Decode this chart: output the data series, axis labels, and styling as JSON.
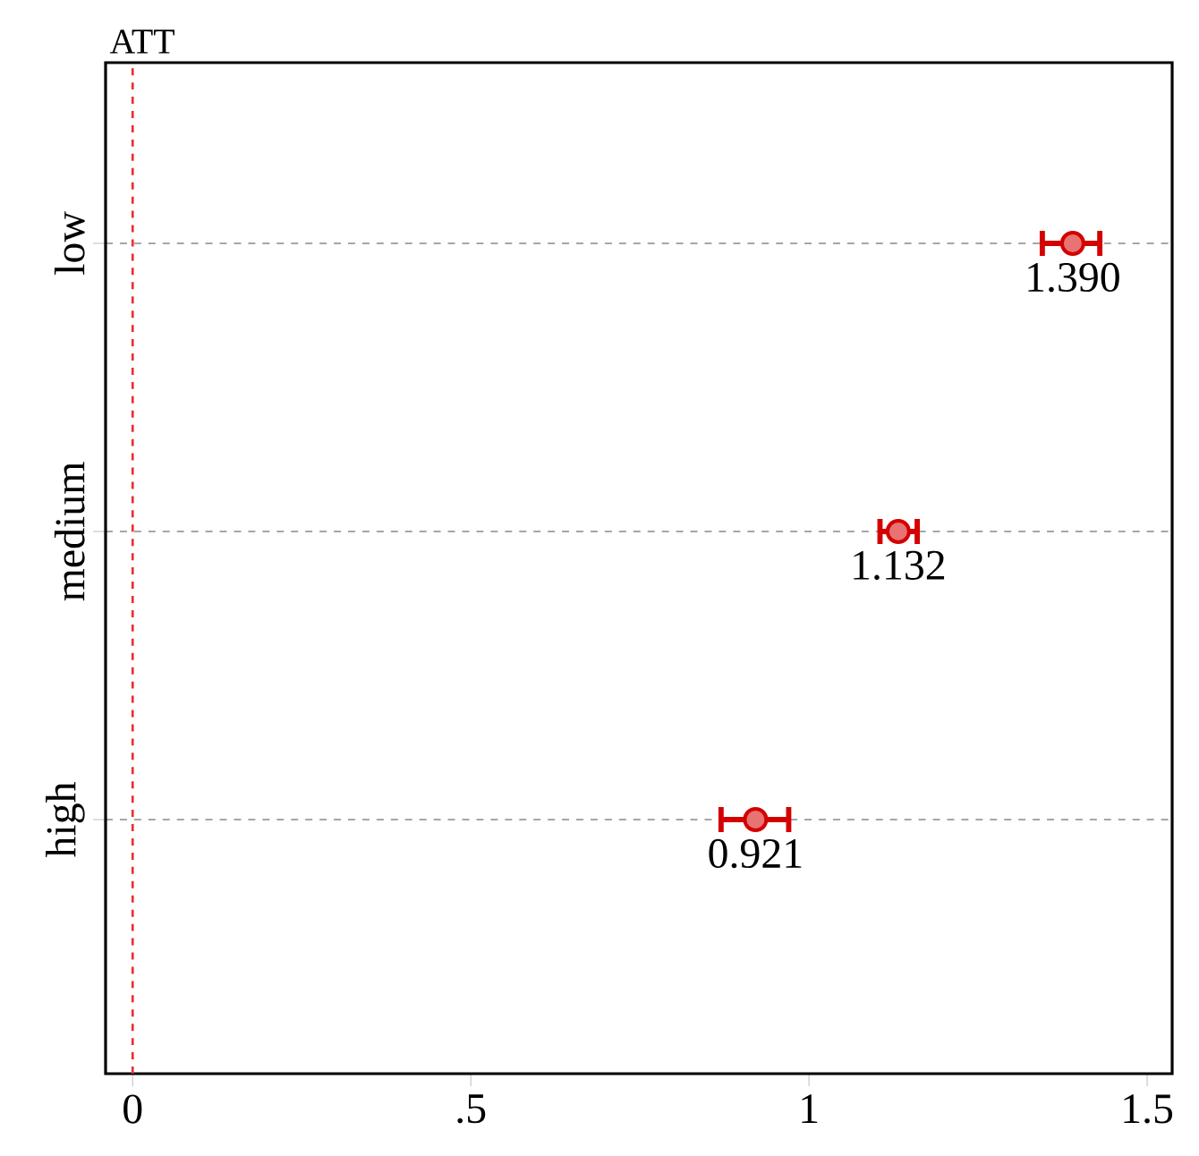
{
  "chart_data": {
    "type": "scatter",
    "orientation": "horizontal",
    "title": "ATT",
    "categories": [
      "low",
      "medium",
      "high"
    ],
    "values": [
      1.39,
      1.132,
      0.921
    ],
    "errors": [
      [
        1.345,
        1.43
      ],
      [
        1.105,
        1.16
      ],
      [
        0.87,
        0.97
      ]
    ],
    "value_labels": [
      "1.390",
      "1.132",
      "0.921"
    ],
    "color": "#d40000",
    "marker": "circle",
    "xlim": [
      -0.04,
      1.537
    ],
    "xticks": [
      0,
      {
        "value": 0.5,
        "label": ".5"
      },
      1,
      1.5
    ],
    "grid": "y",
    "ref_lines": [
      {
        "axis": "x",
        "value": 0,
        "color": "#e83030",
        "line_style": "dashed"
      }
    ]
  }
}
